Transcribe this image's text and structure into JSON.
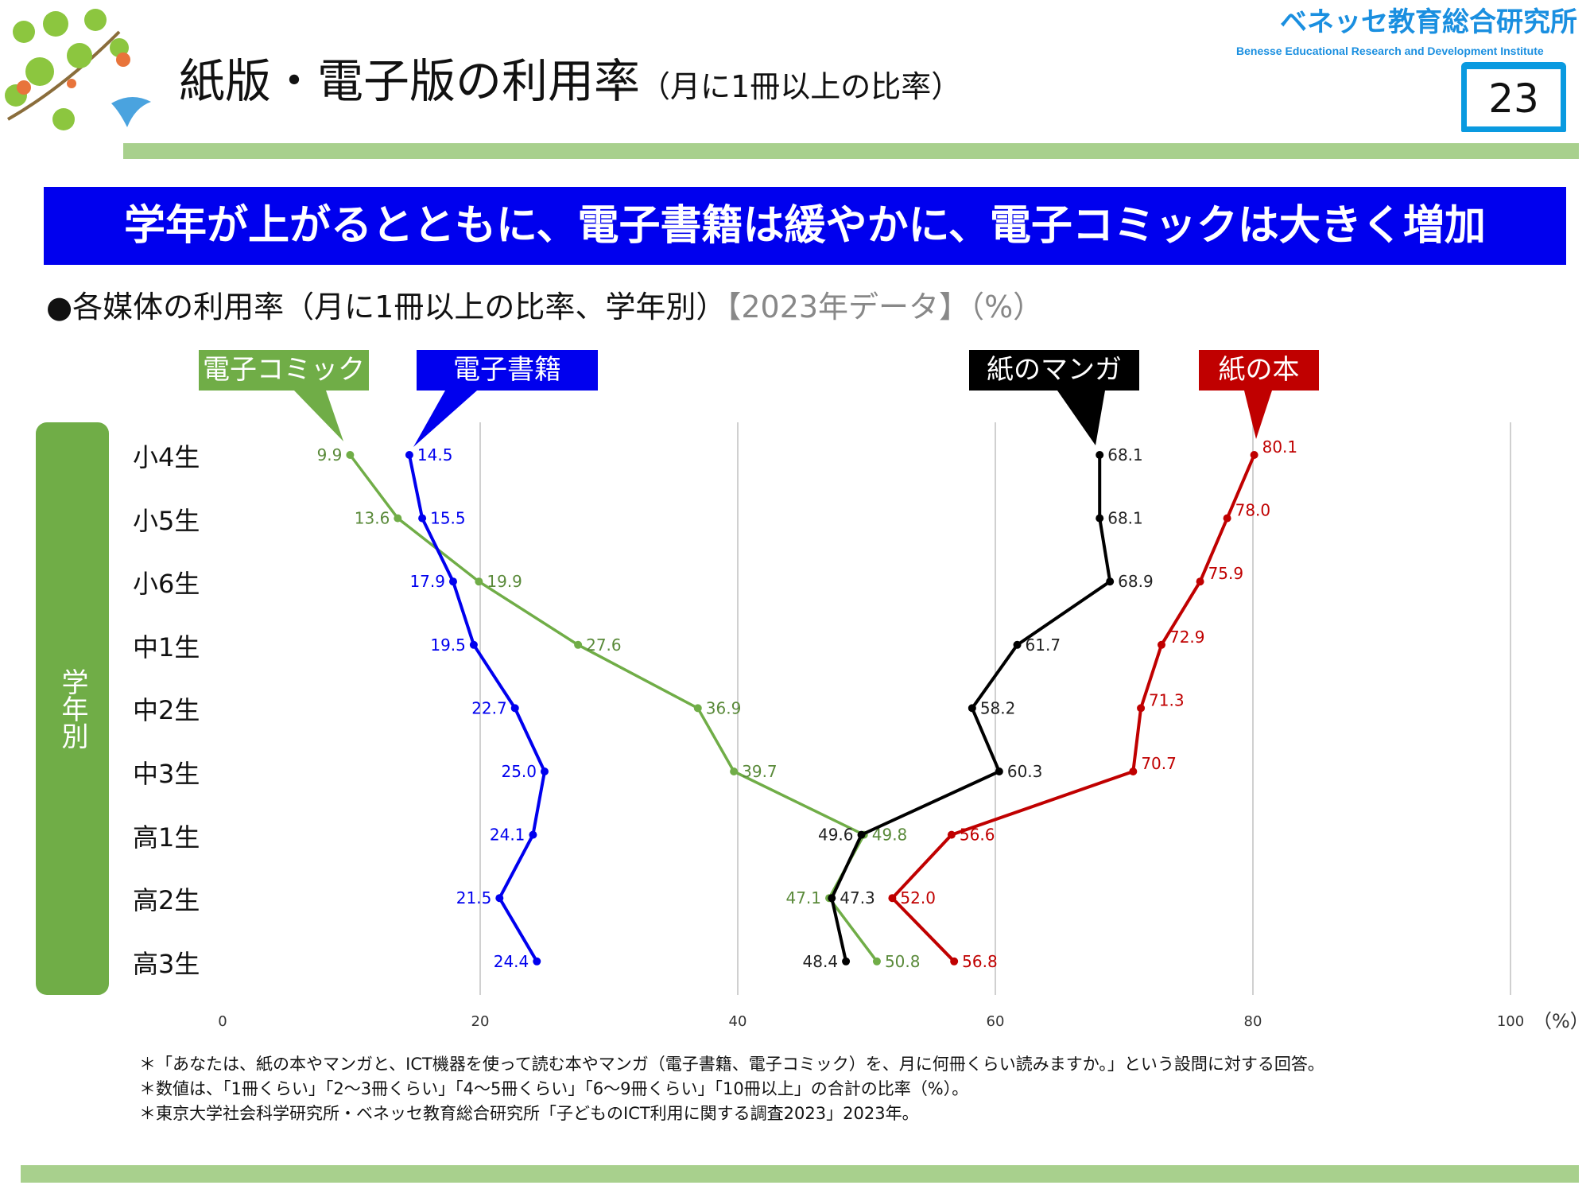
{
  "header": {
    "title": "紙版・電子版の利用率",
    "title_suffix": "（月に1冊以上の比率）",
    "logo_jp": "ベネッセ教育総合研究所",
    "logo_en": "Benesse  Educational Research and Development Institute",
    "page_number": "23"
  },
  "banner": "学年が上がるとともに、電子書籍は緩やかに、電子コミックは大きく増加",
  "subtitle": {
    "main": "●各媒体の利用率（月に1冊以上の比率、学年別）",
    "year": "【2023年データ】",
    "unit": "（%）"
  },
  "sidebar_label": "学年別",
  "chart_data": {
    "type": "line",
    "orientation": "horizontal-values",
    "categories": [
      "小4生",
      "小5生",
      "小6生",
      "中1生",
      "中2生",
      "中3生",
      "高1生",
      "高2生",
      "高3生"
    ],
    "xlim": [
      0,
      100
    ],
    "xticks": [
      "0",
      "20",
      "40",
      "60",
      "80",
      "100"
    ],
    "xunit": "（%）",
    "grid": true,
    "series": [
      {
        "name": "電子コミック",
        "color": "#70ad47",
        "label_color": "#5a8a3a",
        "values": [
          9.9,
          13.6,
          19.9,
          27.6,
          36.9,
          39.7,
          49.8,
          47.1,
          50.8
        ]
      },
      {
        "name": "電子書籍",
        "color": "#0000ee",
        "label_color": "#0000ee",
        "values": [
          14.5,
          15.5,
          17.9,
          19.5,
          22.7,
          25.0,
          24.1,
          21.5,
          24.4
        ]
      },
      {
        "name": "紙のマンガ",
        "color": "#000000",
        "label_color": "#222222",
        "values": [
          68.1,
          68.1,
          68.9,
          61.7,
          58.2,
          60.3,
          49.6,
          47.3,
          48.4
        ]
      },
      {
        "name": "紙の本",
        "color": "#c00000",
        "label_color": "#c00000",
        "values": [
          80.1,
          78.0,
          75.9,
          72.9,
          71.3,
          70.7,
          56.6,
          52.0,
          56.8
        ]
      }
    ]
  },
  "footnotes": [
    "＊「あなたは、紙の本やマンガと、ICT機器を使って読む本やマンガ（電子書籍、電子コミック）を、月に何冊くらい読みますか。」という設問に対する回答。",
    "＊数値は、「1冊くらい」「2〜3冊くらい」「4〜5冊くらい」「6〜9冊くらい」「10冊以上」の合計の比率（%）。",
    "＊東京大学社会科学研究所・ベネッセ教育総合研究所「子どものICT利用に関する調査2023」2023年。"
  ]
}
